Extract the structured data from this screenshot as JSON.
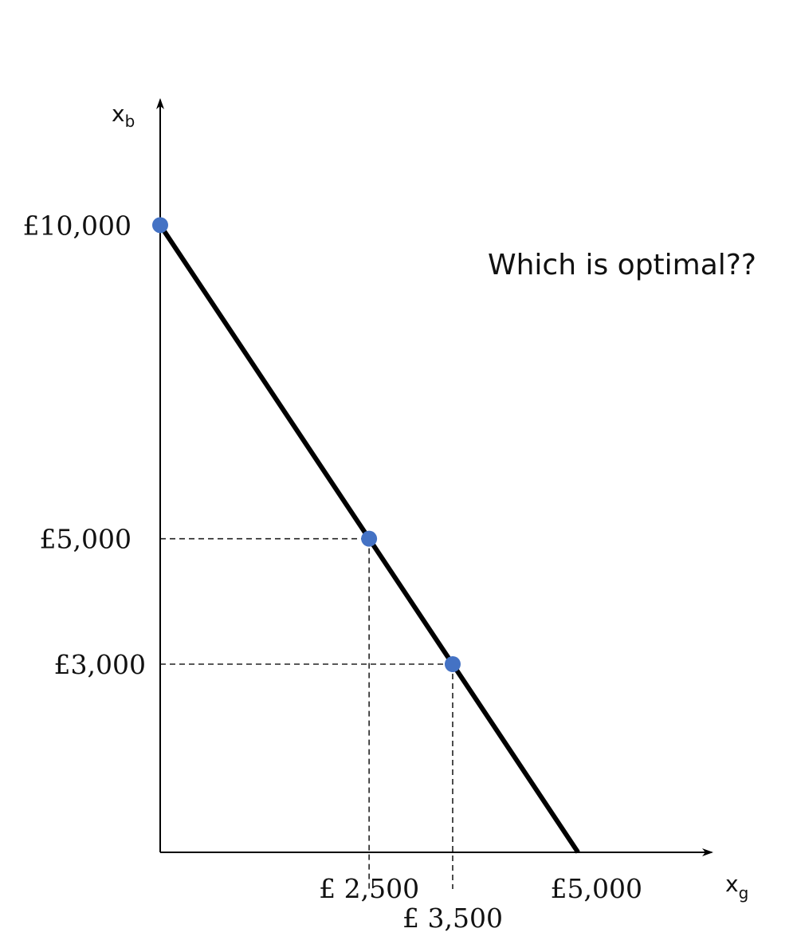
{
  "chart_data": {
    "type": "line",
    "x_axis": {
      "label_main": "x",
      "label_sub": "g"
    },
    "y_axis": {
      "label_main": "x",
      "label_sub": "b"
    },
    "xlim": [
      0,
      6600
    ],
    "ylim": [
      0,
      12000
    ],
    "grid": false,
    "legend": "none",
    "series": [
      {
        "points": [
          {
            "x": 0,
            "y": 10000
          },
          {
            "x": 5000,
            "y": 0
          }
        ]
      }
    ],
    "highlighted_points": [
      {
        "x": 0,
        "y": 10000
      },
      {
        "x": 2500,
        "y": 5000
      },
      {
        "x": 3500,
        "y": 3000
      }
    ],
    "guide_lines": [
      {
        "x": 2500,
        "y": 5000
      },
      {
        "x": 3500,
        "y": 3000
      }
    ],
    "y_tick_labels": [
      {
        "value": 10000,
        "text": "£10,000"
      },
      {
        "value": 5000,
        "text": "£5,000"
      },
      {
        "value": 3000,
        "text": "£3,000"
      }
    ],
    "x_tick_labels": [
      {
        "value": 2500,
        "text": "£ 2,500",
        "row": 1
      },
      {
        "value": 3500,
        "text": "£ 3,500",
        "row": 2
      },
      {
        "value": 5000,
        "text": "£5,000",
        "row": 1
      }
    ],
    "annotation": "Which is optimal??",
    "colors": {
      "line": "#000000",
      "point": "#4472C4",
      "axis": "#000000",
      "guide": "#222222"
    }
  }
}
